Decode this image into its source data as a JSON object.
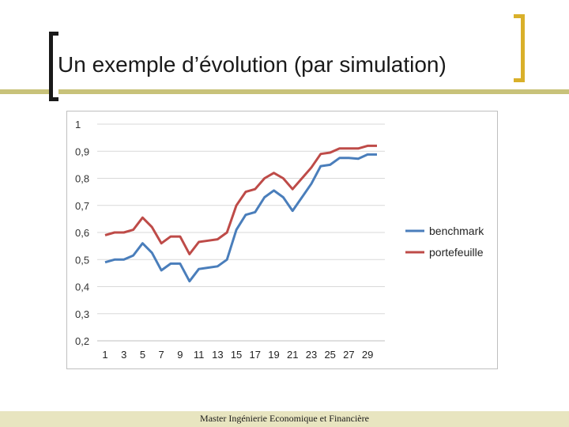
{
  "slide": {
    "title": "Un exemple d’évolution (par simulation)",
    "footer": "Master Ingénierie Economique et Financière",
    "accent_color": "#d9b02a",
    "band_color": "#c8c27a"
  },
  "chart_data": {
    "type": "line",
    "x": [
      1,
      2,
      3,
      4,
      5,
      6,
      7,
      8,
      9,
      10,
      11,
      12,
      13,
      14,
      15,
      16,
      17,
      18,
      19,
      20,
      21,
      22,
      23,
      24,
      25,
      26,
      27,
      28,
      29,
      30
    ],
    "x_tick_labels": [
      "1",
      "3",
      "5",
      "7",
      "9",
      "11",
      "13",
      "15",
      "17",
      "19",
      "21",
      "23",
      "25",
      "27",
      "29"
    ],
    "y_tick_labels": [
      "0,2",
      "0,3",
      "0,4",
      "0,5",
      "0,6",
      "0,7",
      "0,8",
      "0,9",
      "1"
    ],
    "ylim": [
      0.2,
      1
    ],
    "grid": true,
    "legend_position": "right",
    "series": [
      {
        "name": "benchmark",
        "color": "#4a7ebb",
        "values": [
          0.49,
          0.5,
          0.5,
          0.515,
          0.56,
          0.525,
          0.46,
          0.485,
          0.485,
          0.42,
          0.465,
          0.47,
          0.475,
          0.5,
          0.61,
          0.665,
          0.675,
          0.73,
          0.755,
          0.73,
          0.68,
          0.73,
          0.78,
          0.845,
          0.85,
          0.875,
          0.875,
          0.872,
          0.888,
          0.888
        ]
      },
      {
        "name": "portefeuille",
        "color": "#be4b48",
        "values": [
          0.59,
          0.6,
          0.6,
          0.61,
          0.655,
          0.62,
          0.56,
          0.585,
          0.585,
          0.52,
          0.565,
          0.57,
          0.575,
          0.6,
          0.7,
          0.75,
          0.76,
          0.8,
          0.82,
          0.8,
          0.76,
          0.8,
          0.84,
          0.89,
          0.895,
          0.91,
          0.91,
          0.91,
          0.92,
          0.92
        ]
      }
    ]
  }
}
